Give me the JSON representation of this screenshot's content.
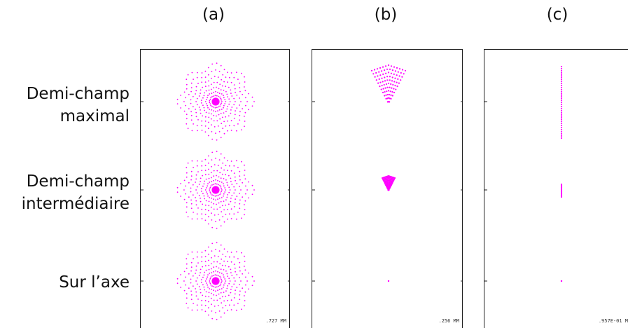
{
  "columns": [
    {
      "title": "(a)",
      "scale": ".727   MM"
    },
    {
      "title": "(b)",
      "scale": ".256   MM"
    },
    {
      "title": "(c)",
      "scale": ".957E-01 M"
    }
  ],
  "rows": [
    {
      "line1": "Demi-champ",
      "line2": "maximal"
    },
    {
      "line1": "Demi-champ",
      "line2": "intermédiaire"
    },
    {
      "line1": "Sur l’axe",
      "line2": ""
    }
  ],
  "colors": {
    "spot": "#ff00ff",
    "frame": "#222222",
    "marker": "#222222"
  }
}
